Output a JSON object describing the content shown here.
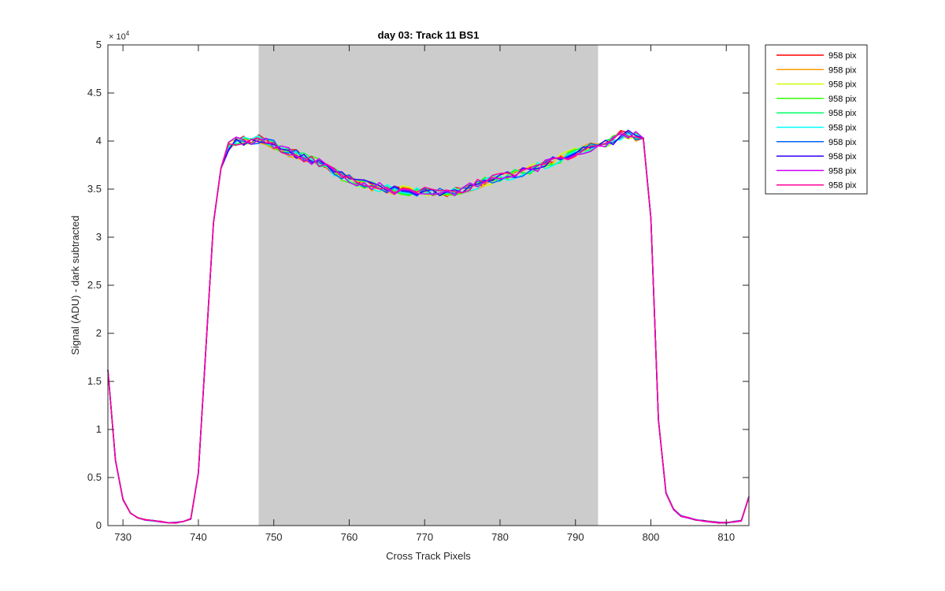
{
  "chart_data": {
    "type": "line",
    "title": "day 03: Track 11  BS1",
    "xlabel": "Cross Track Pixels",
    "ylabel": "Signal (ADU) - dark subtracted",
    "y_exponent_label": "× 10",
    "y_exponent_power": "4",
    "xlim": [
      728,
      813
    ],
    "ylim": [
      0,
      5
    ],
    "y_scale_factor": 10000,
    "x_ticks": [
      730,
      740,
      750,
      760,
      770,
      780,
      790,
      800,
      810
    ],
    "y_ticks": [
      0,
      0.5,
      1,
      1.5,
      2,
      2.5,
      3,
      3.5,
      4,
      4.5,
      5
    ],
    "y_tick_labels": [
      "0",
      "0.5",
      "1",
      "1.5",
      "2",
      "2.5",
      "3",
      "3.5",
      "4",
      "4.5",
      "5"
    ],
    "x_tick_labels": [
      "730",
      "740",
      "750",
      "760",
      "770",
      "780",
      "790",
      "800",
      "810"
    ],
    "shaded_region": {
      "x": [
        748,
        793
      ],
      "color": "#cccccc"
    },
    "grid": false,
    "legend_placement": "outside-top-right",
    "x": [
      728,
      729,
      730,
      731,
      732,
      733,
      734,
      735,
      736,
      737,
      738,
      739,
      740,
      741,
      742,
      743,
      744,
      745,
      746,
      747,
      748,
      749,
      750,
      751,
      752,
      753,
      754,
      755,
      756,
      757,
      758,
      759,
      760,
      761,
      762,
      763,
      764,
      765,
      766,
      767,
      768,
      769,
      770,
      771,
      772,
      773,
      774,
      775,
      776,
      777,
      778,
      779,
      780,
      781,
      782,
      783,
      784,
      785,
      786,
      787,
      788,
      789,
      790,
      791,
      792,
      793,
      794,
      795,
      796,
      797,
      798,
      799,
      800,
      801,
      802,
      803,
      804,
      805,
      806,
      807,
      808,
      809,
      810,
      811,
      812,
      813
    ],
    "base_y": [
      1.62,
      0.68,
      0.27,
      0.13,
      0.08,
      0.06,
      0.05,
      0.04,
      0.03,
      0.03,
      0.04,
      0.07,
      0.55,
      1.85,
      3.15,
      3.72,
      3.95,
      4.0,
      4.0,
      4.0,
      4.02,
      3.98,
      3.96,
      3.92,
      3.88,
      3.86,
      3.83,
      3.8,
      3.77,
      3.73,
      3.68,
      3.64,
      3.6,
      3.57,
      3.55,
      3.53,
      3.52,
      3.5,
      3.49,
      3.49,
      3.48,
      3.47,
      3.47,
      3.47,
      3.47,
      3.47,
      3.48,
      3.5,
      3.52,
      3.55,
      3.58,
      3.6,
      3.62,
      3.64,
      3.66,
      3.68,
      3.7,
      3.73,
      3.76,
      3.79,
      3.82,
      3.85,
      3.88,
      3.91,
      3.94,
      3.96,
      3.98,
      4.01,
      4.06,
      4.07,
      4.05,
      4.03,
      3.2,
      1.1,
      0.34,
      0.17,
      0.1,
      0.08,
      0.06,
      0.05,
      0.04,
      0.03,
      0.03,
      0.04,
      0.05,
      0.3
    ],
    "series": [
      {
        "name": "958 pix",
        "color": "#ff0000",
        "seed": 1
      },
      {
        "name": "958 pix",
        "color": "#ff9900",
        "seed": 2
      },
      {
        "name": "958 pix",
        "color": "#ccff00",
        "seed": 3
      },
      {
        "name": "958 pix",
        "color": "#33ff00",
        "seed": 4
      },
      {
        "name": "958 pix",
        "color": "#00ff66",
        "seed": 5
      },
      {
        "name": "958 pix",
        "color": "#00ffff",
        "seed": 6
      },
      {
        "name": "958 pix",
        "color": "#0066ff",
        "seed": 7
      },
      {
        "name": "958 pix",
        "color": "#3300ff",
        "seed": 8
      },
      {
        "name": "958 pix",
        "color": "#cc00ff",
        "seed": 9
      },
      {
        "name": "958 pix",
        "color": "#ff0099",
        "seed": 10
      }
    ]
  }
}
